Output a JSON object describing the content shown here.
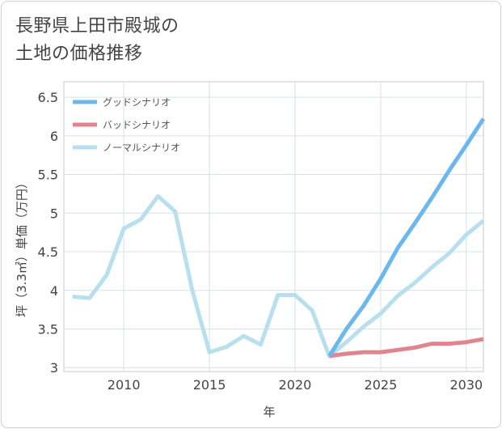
{
  "title_lines": [
    "長野県上田市殿城の",
    "土地の価格推移"
  ],
  "chart_data": {
    "type": "line",
    "title": "長野県上田市殿城の土地の価格推移",
    "xlabel": "年",
    "ylabel": "坪（3.3㎡）単価（万円）",
    "xlim": [
      2006.5,
      2031
    ],
    "ylim": [
      2.95,
      6.7
    ],
    "xticks": [
      2010,
      2015,
      2020,
      2025,
      2030
    ],
    "yticks": [
      3,
      3.5,
      4,
      4.5,
      5,
      5.5,
      6,
      6.5
    ],
    "ytick_labels": [
      "3",
      "3.5",
      "4",
      "4.5",
      "5",
      "5.5",
      "6",
      "6.5"
    ],
    "grid": true,
    "legend_position": "top-left",
    "series": [
      {
        "name": "グッドシナリオ",
        "color": "#6cb8ec",
        "x": [
          2022,
          2023,
          2024,
          2025,
          2026,
          2027,
          2028,
          2029,
          2030,
          2031
        ],
        "values": [
          3.15,
          3.5,
          3.8,
          4.15,
          4.55,
          4.87,
          5.2,
          5.55,
          5.88,
          6.22
        ]
      },
      {
        "name": "バッドシナリオ",
        "color": "#e0848f",
        "x": [
          2022,
          2023,
          2024,
          2025,
          2026,
          2027,
          2028,
          2029,
          2030,
          2031
        ],
        "values": [
          3.15,
          3.18,
          3.2,
          3.2,
          3.23,
          3.26,
          3.31,
          3.31,
          3.33,
          3.37
        ]
      },
      {
        "name": "ノーマルシナリオ",
        "color": "#b8dfee",
        "x": [
          2007,
          2008,
          2009,
          2010,
          2011,
          2012,
          2013,
          2014,
          2015,
          2016,
          2017,
          2018,
          2019,
          2020,
          2021,
          2022,
          2023,
          2024,
          2025,
          2026,
          2027,
          2028,
          2029,
          2030,
          2031
        ],
        "values": [
          3.92,
          3.9,
          4.2,
          4.8,
          4.92,
          5.22,
          5.02,
          4.0,
          3.2,
          3.27,
          3.41,
          3.3,
          3.94,
          3.94,
          3.74,
          3.15,
          3.33,
          3.53,
          3.7,
          3.93,
          4.1,
          4.3,
          4.48,
          4.72,
          4.9
        ]
      }
    ]
  }
}
